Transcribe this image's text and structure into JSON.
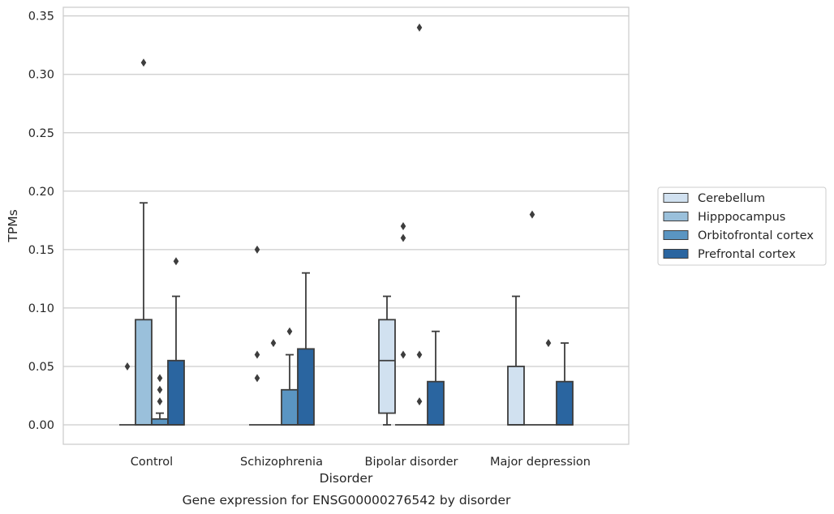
{
  "chart_data": {
    "type": "box",
    "xlabel": "Disorder",
    "ylabel": "TPMs",
    "caption": "Gene expression for ENSG00000276542 by disorder",
    "ylim": [
      -0.017,
      0.358
    ],
    "yticks": [
      "0.00",
      "0.05",
      "0.10",
      "0.15",
      "0.20",
      "0.25",
      "0.30",
      "0.35"
    ],
    "grid": "horizontal",
    "legend_position": "right",
    "categories": [
      "Control",
      "Schizophrenia",
      "Bipolar disorder",
      "Major depression"
    ],
    "series": [
      {
        "name": "Cerebellum",
        "color": "#d1e1f0",
        "boxes": [
          {
            "category": "Control",
            "whisker_low": 0,
            "q1": 0,
            "median": 0,
            "q3": 0,
            "whisker_high": 0,
            "outliers": [
              0.05
            ]
          },
          {
            "category": "Schizophrenia",
            "whisker_low": 0,
            "q1": 0,
            "median": 0,
            "q3": 0,
            "whisker_high": 0,
            "outliers": [
              0.04,
              0.06,
              0.15
            ]
          },
          {
            "category": "Bipolar disorder",
            "whisker_low": 0,
            "q1": 0.01,
            "median": 0.055,
            "q3": 0.09,
            "whisker_high": 0.11,
            "outliers": []
          },
          {
            "category": "Major depression",
            "whisker_low": 0,
            "q1": 0,
            "median": 0,
            "q3": 0.05,
            "whisker_high": 0.11,
            "outliers": []
          }
        ]
      },
      {
        "name": "Hipppocampus",
        "color": "#9ac0db",
        "boxes": [
          {
            "category": "Control",
            "whisker_low": 0,
            "q1": 0,
            "median": 0,
            "q3": 0.09,
            "whisker_high": 0.19,
            "outliers": [
              0.31
            ]
          },
          {
            "category": "Schizophrenia",
            "whisker_low": 0,
            "q1": 0,
            "median": 0,
            "q3": 0,
            "whisker_high": 0,
            "outliers": [
              0.07
            ]
          },
          {
            "category": "Bipolar disorder",
            "whisker_low": 0,
            "q1": 0,
            "median": 0,
            "q3": 0,
            "whisker_high": 0,
            "outliers": [
              0.06,
              0.16,
              0.17
            ]
          },
          {
            "category": "Major depression",
            "whisker_low": 0,
            "q1": 0,
            "median": 0,
            "q3": 0,
            "whisker_high": 0,
            "outliers": [
              0.18
            ]
          }
        ]
      },
      {
        "name": "Orbitofrontal cortex",
        "color": "#5a95c2",
        "boxes": [
          {
            "category": "Control",
            "whisker_low": 0,
            "q1": 0,
            "median": 0,
            "q3": 0.005,
            "whisker_high": 0.01,
            "outliers": [
              0.02,
              0.03,
              0.04
            ]
          },
          {
            "category": "Schizophrenia",
            "whisker_low": 0,
            "q1": 0,
            "median": 0,
            "q3": 0.03,
            "whisker_high": 0.06,
            "outliers": [
              0.08
            ]
          },
          {
            "category": "Bipolar disorder",
            "whisker_low": 0,
            "q1": 0,
            "median": 0,
            "q3": 0,
            "whisker_high": 0,
            "outliers": [
              0.02,
              0.06,
              0.34
            ]
          },
          {
            "category": "Major depression",
            "whisker_low": 0,
            "q1": 0,
            "median": 0,
            "q3": 0,
            "whisker_high": 0,
            "outliers": [
              0.07
            ]
          }
        ]
      },
      {
        "name": "Prefrontal cortex",
        "color": "#2a65a0",
        "boxes": [
          {
            "category": "Control",
            "whisker_low": 0,
            "q1": 0,
            "median": 0,
            "q3": 0.055,
            "whisker_high": 0.11,
            "outliers": [
              0.14
            ]
          },
          {
            "category": "Schizophrenia",
            "whisker_low": 0,
            "q1": 0,
            "median": 0,
            "q3": 0.065,
            "whisker_high": 0.13,
            "outliers": []
          },
          {
            "category": "Bipolar disorder",
            "whisker_low": 0,
            "q1": 0,
            "median": 0,
            "q3": 0.037,
            "whisker_high": 0.08,
            "outliers": []
          },
          {
            "category": "Major depression",
            "whisker_low": 0,
            "q1": 0,
            "median": 0,
            "q3": 0.037,
            "whisker_high": 0.07,
            "outliers": []
          }
        ]
      }
    ]
  }
}
